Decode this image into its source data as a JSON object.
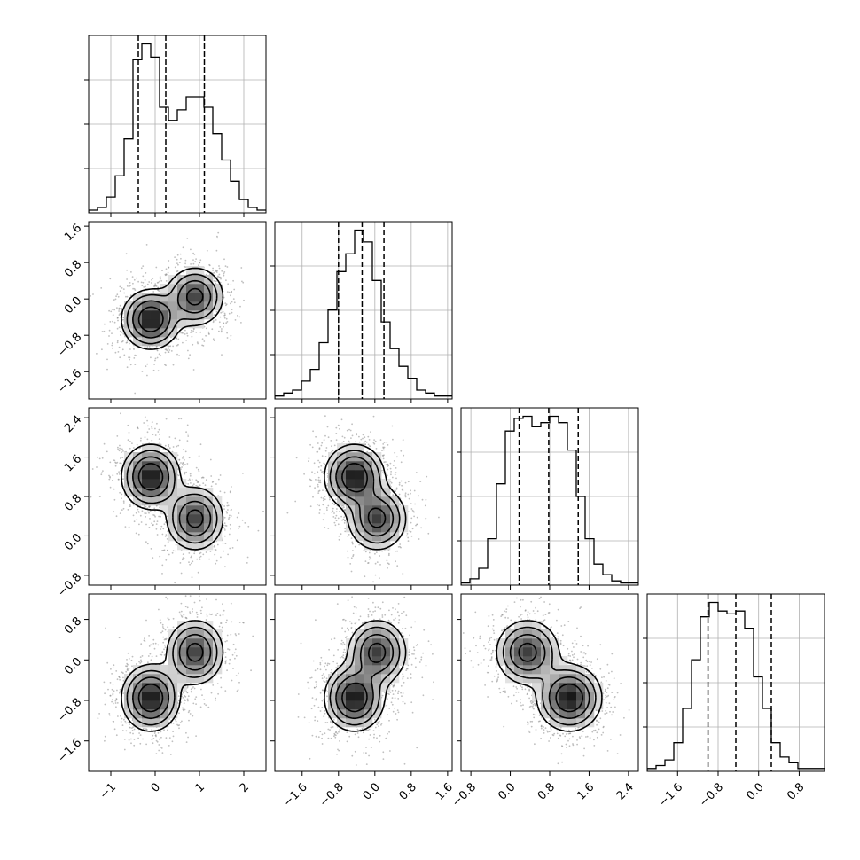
{
  "chart_data": {
    "type": "corner",
    "title": "",
    "grid": true,
    "params": [
      {
        "ticks": [
          -1,
          0,
          1,
          2
        ],
        "tick_labels": [
          "−1",
          "0",
          "1",
          "2"
        ],
        "range": [
          -1.5,
          2.5
        ],
        "quantiles": [
          -0.38,
          0.24,
          1.11
        ]
      },
      {
        "ticks": [
          -1.6,
          -0.8,
          0.0,
          0.8,
          1.6
        ],
        "tick_labels": [
          "−1.6",
          "−0.8",
          "0.0",
          "0.8",
          "1.6"
        ],
        "range": [
          -2.2,
          1.7
        ],
        "quantiles": [
          -0.8,
          -0.28,
          0.2
        ]
      },
      {
        "ticks": [
          -0.8,
          0.0,
          0.8,
          1.6,
          2.4
        ],
        "tick_labels": [
          "−0.8",
          "0.0",
          "0.8",
          "1.6",
          "2.4"
        ],
        "range": [
          -1.0,
          2.6
        ],
        "quantiles": [
          0.18,
          0.78,
          1.38
        ]
      },
      {
        "ticks": [
          -1.6,
          -0.8,
          0.0,
          0.8
        ],
        "tick_labels": [
          "−1.6",
          "−0.8",
          "0.0",
          "0.8"
        ],
        "range": [
          -2.2,
          1.3
        ],
        "quantiles": [
          -1.0,
          -0.45,
          0.25
        ]
      }
    ],
    "mixture": {
      "weights": [
        0.55,
        0.45
      ],
      "means": [
        [
          -0.1,
          -0.45,
          1.2,
          -0.75
        ],
        [
          0.9,
          0.05,
          0.35,
          0.15
        ]
      ],
      "sds": [
        0.32,
        0.32,
        0.32,
        0.32
      ]
    },
    "histograms": [
      [
        1,
        2,
        6,
        14,
        28,
        58,
        64,
        59,
        40,
        35,
        39,
        44,
        44,
        40,
        30,
        20,
        12,
        5,
        2,
        1
      ],
      [
        1,
        2,
        3,
        6,
        10,
        19,
        30,
        43,
        49,
        57,
        53,
        40,
        26,
        17,
        11,
        7,
        3,
        2,
        1,
        1
      ],
      [
        1,
        3,
        8,
        22,
        48,
        73,
        79,
        80,
        75,
        77,
        80,
        77,
        64,
        42,
        22,
        10,
        5,
        2,
        1,
        1
      ],
      [
        1,
        2,
        4,
        10,
        22,
        39,
        54,
        59,
        56,
        55,
        56,
        50,
        33,
        22,
        10,
        5,
        3,
        1,
        1,
        1
      ]
    ],
    "density_levels": [
      0.12,
      0.25,
      0.45,
      0.7
    ]
  }
}
